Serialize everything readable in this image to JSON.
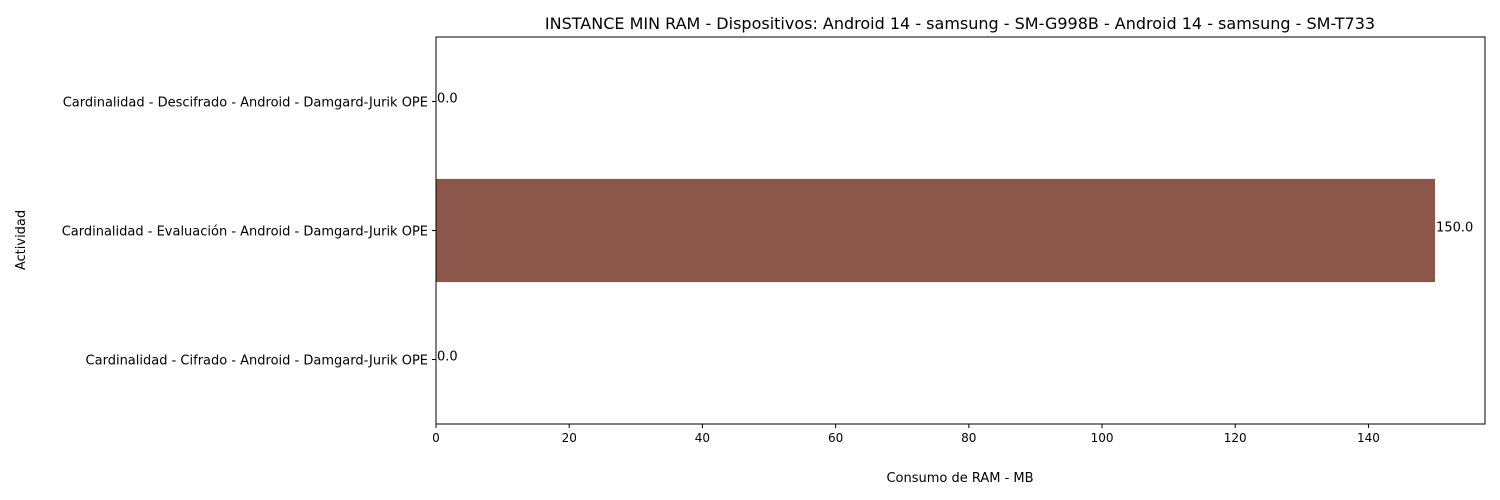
{
  "chart_data": {
    "type": "bar",
    "orientation": "horizontal",
    "title": "INSTANCE MIN RAM - Dispositivos: Android 14 - samsung - SM-G998B - Android 14 - samsung - SM-T733",
    "xlabel": "Consumo de RAM - MB",
    "ylabel": "Actividad",
    "categories": [
      "Cardinalidad - Descifrado - Android - Damgard-Jurik OPE",
      "Cardinalidad - Evaluación - Android - Damgard-Jurik OPE",
      "Cardinalidad - Cifrado - Android - Damgard-Jurik OPE"
    ],
    "values": [
      0.0,
      150.0,
      0.0
    ],
    "value_labels": [
      "0.0",
      "150.0",
      "0.0"
    ],
    "bar_color": "#8c564b",
    "xlim": [
      0,
      157.5
    ],
    "xticks": [
      0,
      20,
      40,
      60,
      80,
      100,
      120,
      140
    ],
    "grid": false
  }
}
